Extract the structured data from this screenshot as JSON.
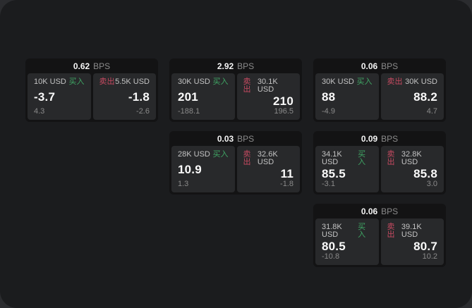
{
  "labels": {
    "bps_unit": "BPS",
    "buy": "买入",
    "sell": "卖出"
  },
  "colors": {
    "buy": "#3fa564",
    "sell": "#c64a61",
    "window_bg": "#1b1c1e",
    "card_bg": "#131314",
    "panel_bg": "#28292b"
  },
  "cards": [
    {
      "bps": "0.62",
      "buy": {
        "amount": "10K USD",
        "price": "-3.7",
        "delta": "4.3"
      },
      "sell": {
        "amount": "5.5K USD",
        "price": "-1.8",
        "delta": "-2.6"
      }
    },
    {
      "bps": "2.92",
      "buy": {
        "amount": "30K USD",
        "price": "201",
        "delta": "-188.1"
      },
      "sell": {
        "amount": "30.1K USD",
        "price": "210",
        "delta": "196.5"
      }
    },
    {
      "bps": "0.06",
      "buy": {
        "amount": "30K USD",
        "price": "88",
        "delta": "-4.9"
      },
      "sell": {
        "amount": "30K USD",
        "price": "88.2",
        "delta": "4.7"
      }
    },
    {
      "bps": "0.03",
      "buy": {
        "amount": "28K USD",
        "price": "10.9",
        "delta": "1.3"
      },
      "sell": {
        "amount": "32.6K USD",
        "price": "11",
        "delta": "-1.8"
      }
    },
    {
      "bps": "0.09",
      "buy": {
        "amount": "34.1K USD",
        "price": "85.5",
        "delta": "-3.1"
      },
      "sell": {
        "amount": "32.8K USD",
        "price": "85.8",
        "delta": "3.0"
      }
    },
    {
      "bps": "0.06",
      "buy": {
        "amount": "31.8K USD",
        "price": "80.5",
        "delta": "-10.8"
      },
      "sell": {
        "amount": "39.1K USD",
        "price": "80.7",
        "delta": "10.2"
      }
    }
  ]
}
